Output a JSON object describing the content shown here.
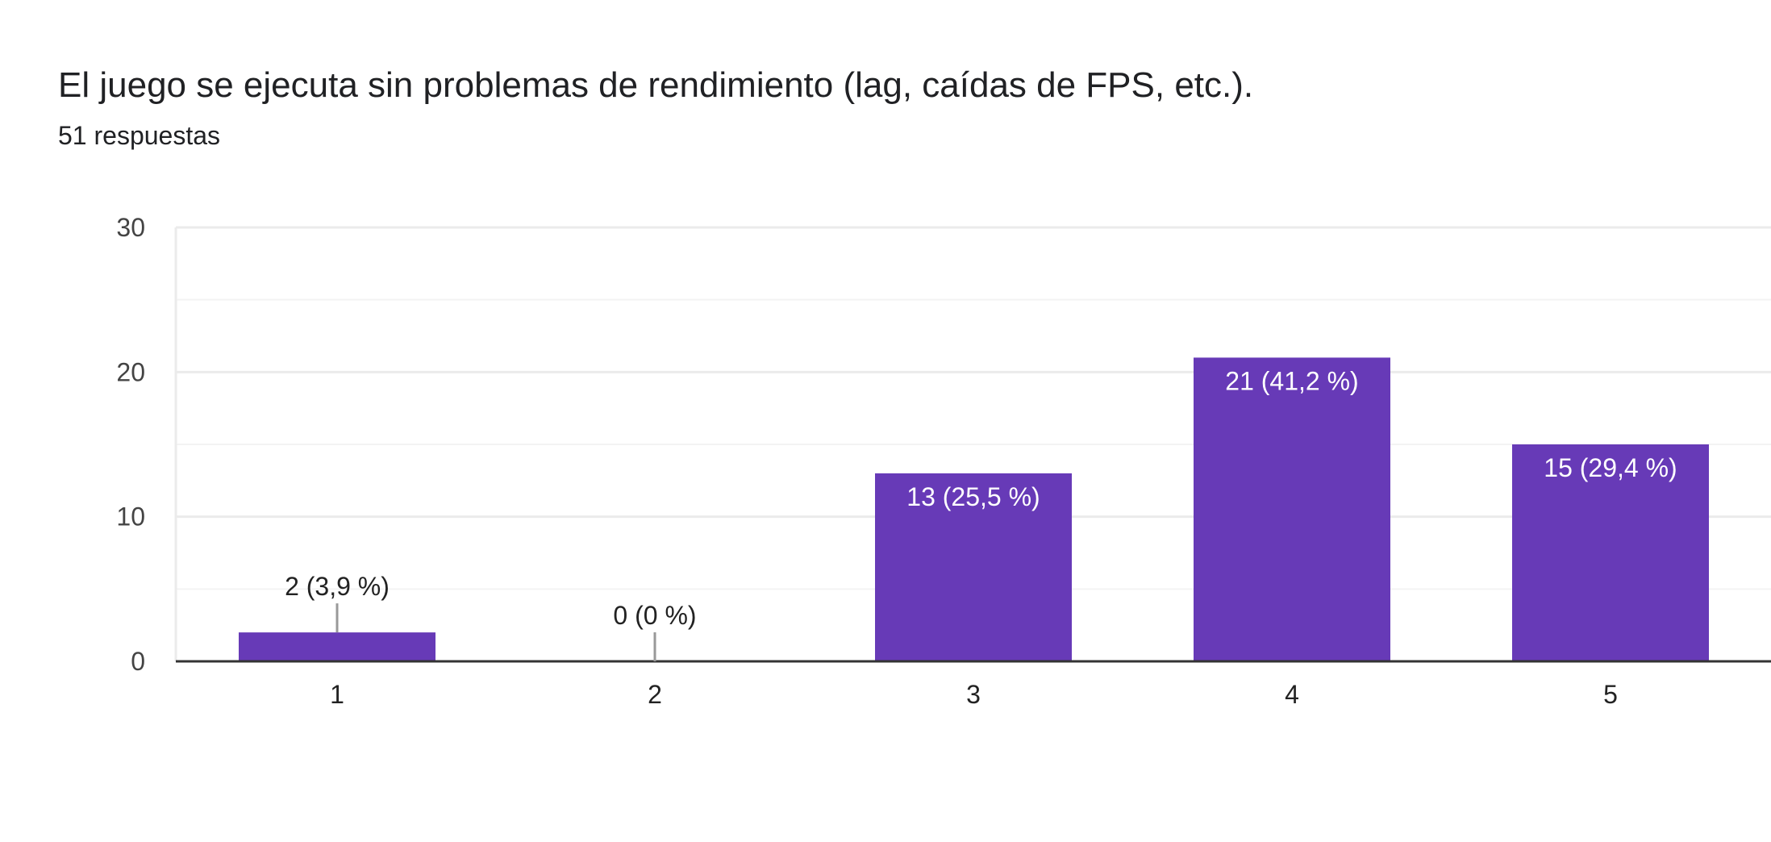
{
  "header": {
    "title": "El juego se ejecuta sin problemas de rendimiento (lag, caídas de FPS, etc.).",
    "subtitle": "51 respuestas"
  },
  "colors": {
    "bar": "#673ab7",
    "grid": "#ebebeb",
    "axis": "#333333",
    "leader": "#999999",
    "label_inside": "#ffffff",
    "label_outside": "#222222"
  },
  "chart_data": {
    "type": "bar",
    "categories": [
      "1",
      "2",
      "3",
      "4",
      "5"
    ],
    "values": [
      2,
      0,
      13,
      21,
      15
    ],
    "data_labels": [
      "2 (3,9 %)",
      "0 (0 %)",
      "13 (25,5 %)",
      "21 (41,2 %)",
      "15 (29,4 %)"
    ],
    "ylim": [
      0,
      30
    ],
    "y_ticks": [
      "0",
      "10",
      "20",
      "30"
    ],
    "y_tick_values": [
      0,
      10,
      20,
      30
    ],
    "minor_gridlines": [
      5,
      15,
      25
    ],
    "grid": true,
    "legend": "none",
    "xlabel": "",
    "ylabel": ""
  }
}
